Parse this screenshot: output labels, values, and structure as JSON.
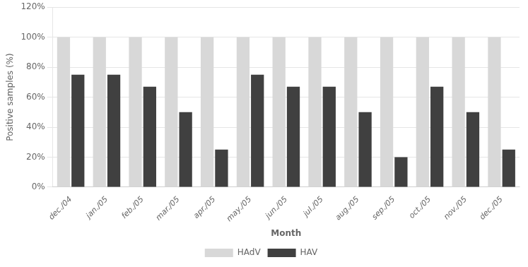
{
  "chart_data": {
    "type": "bar",
    "categories": [
      "dec./04",
      "jan./05",
      "feb./05",
      "mar./05",
      "apr./05",
      "may./05",
      "jun./05",
      "jul./05",
      "aug./05",
      "sep./05",
      "oct./05",
      "nov./05",
      "dec./05"
    ],
    "series": [
      {
        "name": "HAdV",
        "color": "#d8d8d8",
        "values": [
          100,
          100,
          100,
          100,
          100,
          100,
          100,
          100,
          100,
          100,
          100,
          100,
          100
        ]
      },
      {
        "name": "HAV",
        "color": "#404040",
        "values": [
          75,
          75,
          67,
          50,
          25,
          75,
          67,
          67,
          50,
          20,
          67,
          50,
          25
        ]
      }
    ],
    "ylabel": "Positive samples (%)",
    "xlabel": "Month",
    "ylim": [
      0,
      120
    ],
    "yticks": [
      {
        "value": 0,
        "label": "0%"
      },
      {
        "value": 20,
        "label": "20%"
      },
      {
        "value": 40,
        "label": "40%"
      },
      {
        "value": 60,
        "label": "60%"
      },
      {
        "value": 80,
        "label": "80%"
      },
      {
        "value": 100,
        "label": "100%"
      },
      {
        "value": 120,
        "label": "120%"
      }
    ],
    "grid": true,
    "legend": "bottom"
  }
}
